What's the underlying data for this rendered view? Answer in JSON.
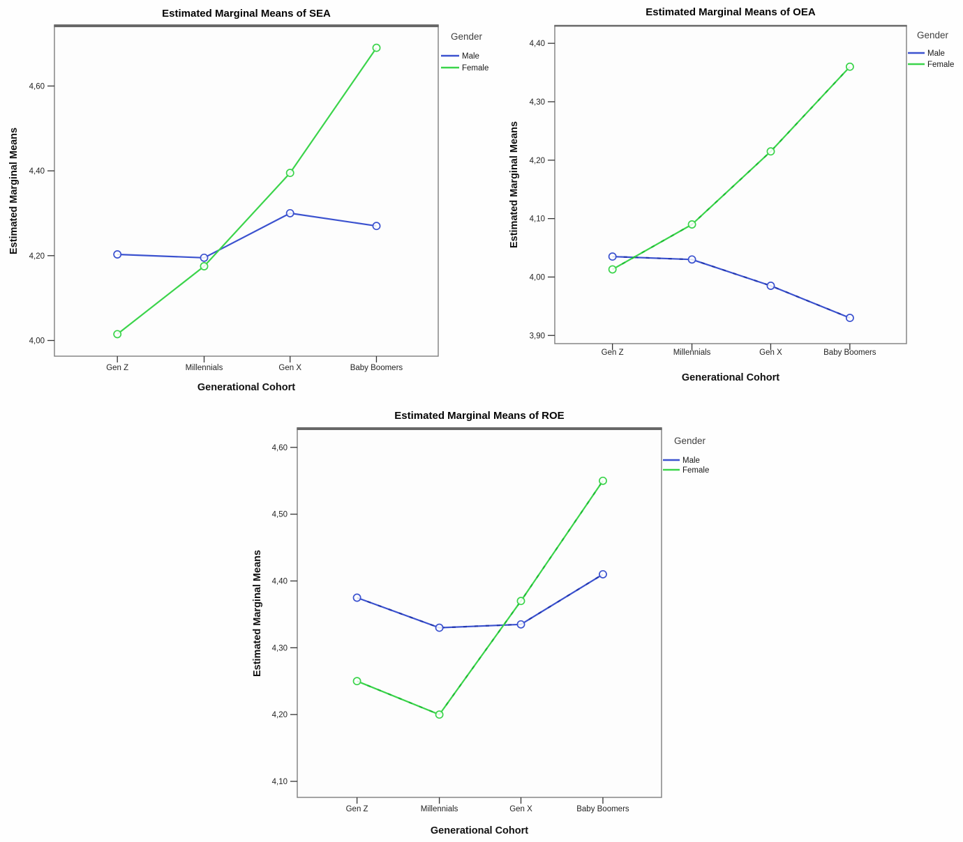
{
  "chart_data": [
    {
      "type": "line",
      "id": "sea",
      "title": "Estimated Marginal Means of SEA",
      "xlabel": "Generational Cohort",
      "ylabel": "Estimated Marginal Means",
      "legend_title": "Gender",
      "legend_position": "right",
      "grid": false,
      "categories": [
        "Gen Z",
        "Millennials",
        "Gen X",
        "Baby Boomers"
      ],
      "y_ticks": {
        "values": [
          4.0,
          4.2,
          4.4,
          4.6
        ],
        "labels": [
          "4,00",
          "4,20",
          "4,40",
          "4,60"
        ]
      },
      "ylim": [
        3.963,
        4.742
      ],
      "series": [
        {
          "name": "Male",
          "color": "#3b52cf",
          "values": [
            4.203,
            4.195,
            4.3,
            4.27
          ]
        },
        {
          "name": "Female",
          "color": "#3bd44b",
          "values": [
            4.015,
            4.175,
            4.395,
            4.69
          ]
        }
      ]
    },
    {
      "type": "line",
      "id": "oea",
      "title": "Estimated Marginal Means of OEA",
      "xlabel": "Generational Cohort",
      "ylabel": "Estimated Marginal Means",
      "legend_title": "Gender",
      "legend_position": "right",
      "grid": false,
      "categories": [
        "Gen Z",
        "Millennials",
        "Gen X",
        "Baby Boomers"
      ],
      "y_ticks": {
        "values": [
          3.9,
          4.0,
          4.1,
          4.2,
          4.3,
          4.4
        ],
        "labels": [
          "3,90",
          "4,00",
          "4,10",
          "4,20",
          "4,30",
          "4,40"
        ]
      },
      "ylim": [
        3.886,
        4.43
      ],
      "series": [
        {
          "name": "Male",
          "color": "#3b52cf",
          "values": [
            4.035,
            4.03,
            3.985,
            3.93
          ]
        },
        {
          "name": "Female",
          "color": "#3bd44b",
          "values": [
            4.013,
            4.09,
            4.215,
            4.36
          ]
        }
      ]
    },
    {
      "type": "line",
      "id": "roe",
      "title": "Estimated Marginal Means of ROE",
      "xlabel": "Generational Cohort",
      "ylabel": "Estimated Marginal Means",
      "legend_title": "Gender",
      "legend_position": "right",
      "grid": false,
      "categories": [
        "Gen Z",
        "Millennials",
        "Gen X",
        "Baby Boomers"
      ],
      "y_ticks": {
        "values": [
          4.1,
          4.2,
          4.3,
          4.4,
          4.5,
          4.6
        ],
        "labels": [
          "4,10",
          "4,20",
          "4,30",
          "4,40",
          "4,50",
          "4,60"
        ]
      },
      "ylim": [
        4.076,
        4.628
      ],
      "series": [
        {
          "name": "Male",
          "color": "#3b52cf",
          "values": [
            4.375,
            4.33,
            4.335,
            4.41
          ]
        },
        {
          "name": "Female",
          "color": "#3bd44b",
          "values": [
            4.25,
            4.2,
            4.37,
            4.55
          ]
        }
      ]
    }
  ],
  "palette": {
    "male_line": "#3b52cf",
    "male_dash_overlay": "#2438ae",
    "female_line": "#3bd44b",
    "female_dash_overlay": "#1fbc35",
    "plot_border": "#7d7d7d",
    "plot_top_edge": "#686868",
    "plot_background": "#fdfdfd",
    "tick_color": "#333333"
  }
}
